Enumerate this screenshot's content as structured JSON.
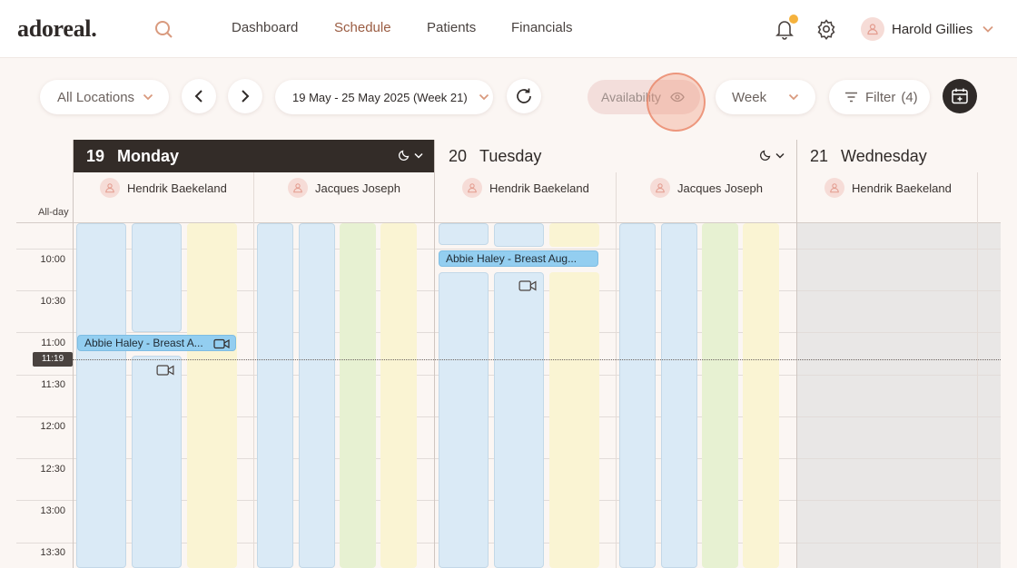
{
  "app": {
    "logo": "adoreal."
  },
  "nav": {
    "items": [
      "Dashboard",
      "Schedule",
      "Patients",
      "Financials"
    ],
    "active": "Schedule"
  },
  "user": {
    "name": "Harold Gillies"
  },
  "toolbar": {
    "location": "All Locations",
    "date_range": "19 May - 25 May 2025 (Week 21)",
    "availability": "Availability",
    "view": "Week",
    "filter_label": "Filter",
    "filter_count": "(4)"
  },
  "days": [
    {
      "num": "19",
      "name": "Monday"
    },
    {
      "num": "20",
      "name": "Tuesday"
    },
    {
      "num": "21",
      "name": "Wednesday"
    }
  ],
  "providers": [
    "Hendrik Baekeland",
    "Jacques Joseph",
    "Hendrik Baekeland",
    "Jacques Joseph",
    "Hendrik Baekeland"
  ],
  "allday_label": "All-day",
  "times": [
    "10:00",
    "10:30",
    "11:00",
    "11:30",
    "12:00",
    "12:30",
    "13:00",
    "13:30"
  ],
  "now": "11:19",
  "events": [
    {
      "title": "Abbie Haley - Breast A...",
      "day": "Monday"
    },
    {
      "title": "Abbie Haley - Breast Aug...",
      "day": "Tuesday"
    }
  ],
  "colors": {
    "accent": "#9a5c42",
    "dark": "#332c28",
    "event": "#93cef0",
    "notification_dot": "#f5b23d"
  }
}
